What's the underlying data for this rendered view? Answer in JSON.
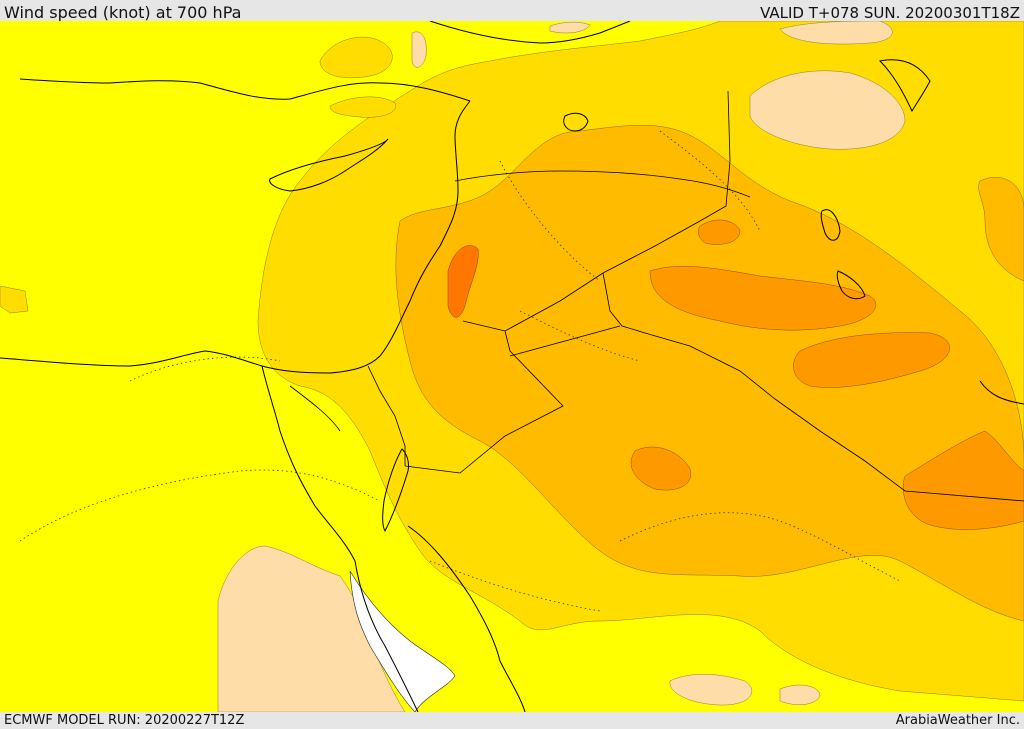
{
  "header": {
    "title": "Wind speed (knot) at 700 hPa",
    "valid_time": "VALID T+078 SUN. 20200301T18Z"
  },
  "footer": {
    "model_run": "ECMWF MODEL RUN: 20200227T12Z",
    "credit": "ArabiaWeather Inc."
  },
  "map": {
    "field": "wind speed 700 hPa",
    "palette": {
      "background": "#ffff00",
      "level_1": "#ffdd00",
      "level_2": "#ffbb00",
      "level_3": "#ff9900",
      "level_4": "#ff7700",
      "calm": "#ffdda8",
      "no_data": "#ffffff",
      "coastline": "#000000"
    }
  }
}
